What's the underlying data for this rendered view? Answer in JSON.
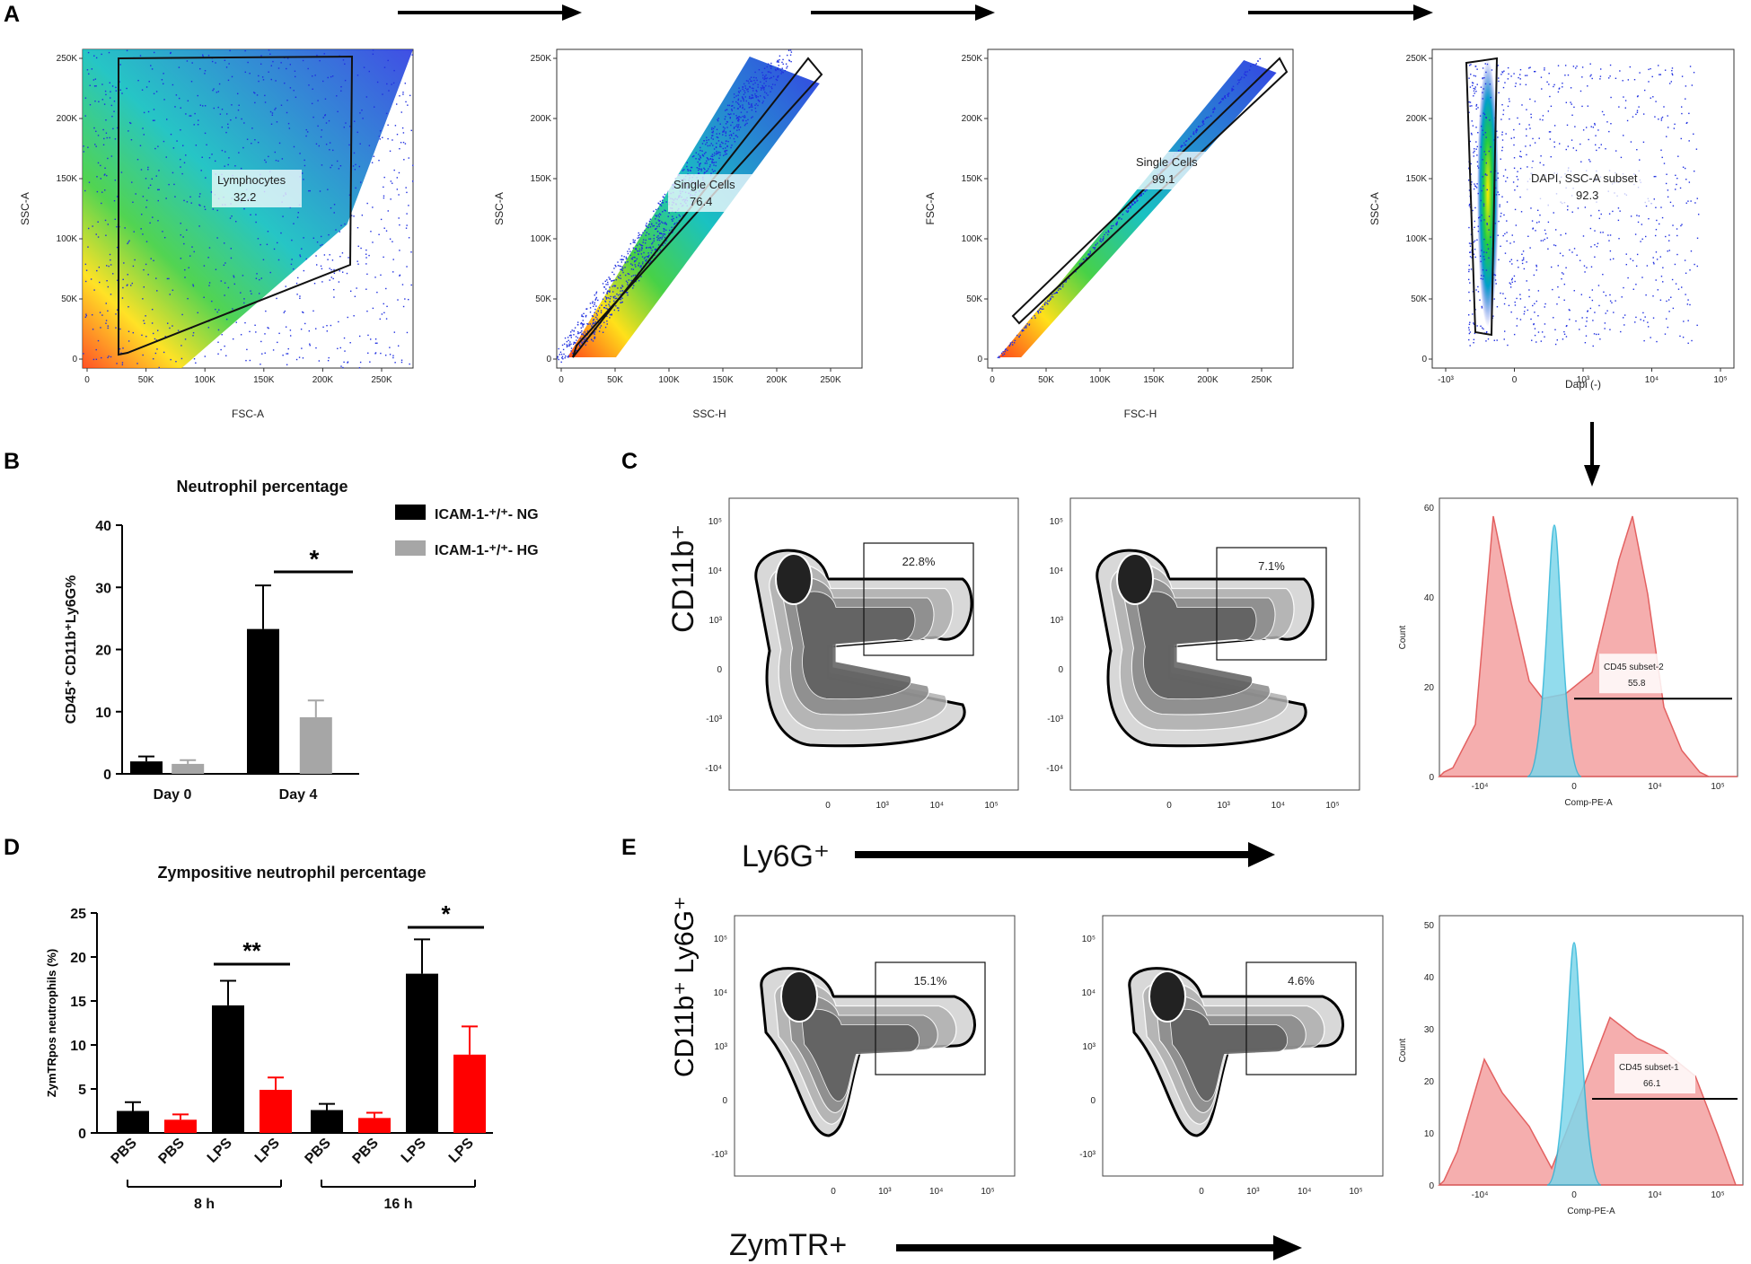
{
  "panels": {
    "A": {
      "letter": "A",
      "plots": [
        {
          "ylabel": "SSC-A",
          "xlabel": "FSC-A",
          "gate_name": "Lymphocytes",
          "gate_value": "32.2",
          "yticks": [
            "250K",
            "200K",
            "150K",
            "100K",
            "50K",
            "0"
          ],
          "xticks": [
            "0",
            "50K",
            "100K",
            "150K",
            "200K",
            "250K"
          ]
        },
        {
          "ylabel": "SSC-A",
          "xlabel": "SSC-H",
          "gate_name": "Single Cells",
          "gate_value": "76.4",
          "yticks": [
            "250K",
            "200K",
            "150K",
            "100K",
            "50K",
            "0"
          ],
          "xticks": [
            "0",
            "50K",
            "100K",
            "150K",
            "200K",
            "250K"
          ]
        },
        {
          "ylabel": "FSC-A",
          "xlabel": "FSC-H",
          "gate_name": "Single Cells",
          "gate_value": "99.1",
          "yticks": [
            "250K",
            "200K",
            "150K",
            "100K",
            "50K",
            "0"
          ],
          "xticks": [
            "0",
            "50K",
            "100K",
            "150K",
            "200K",
            "250K"
          ]
        },
        {
          "ylabel": "SSC-A",
          "xlabel": "Dapi (-)",
          "gate_name": "DAPI, SSC-A subset",
          "gate_value": "92.3",
          "yticks": [
            "250K",
            "200K",
            "150K",
            "100K",
            "50K",
            "0"
          ],
          "xticks": [
            "-10³",
            "0",
            "10³",
            "10⁴",
            "10⁵"
          ]
        }
      ]
    },
    "B": {
      "letter": "B"
    },
    "C": {
      "letter": "C",
      "ylabel": "CD11b⁺",
      "xlabel": "Ly6G⁺",
      "gate1": "22.8%",
      "gate2": "7.1%",
      "hist": {
        "ylabel": "Count",
        "xlabel": "Comp-PE-A",
        "gate_name": "CD45 subset-2",
        "gate_value": "55.8",
        "yticks": [
          "60",
          "40",
          "20",
          "0"
        ],
        "xticks": [
          "-10⁴",
          "0",
          "10⁴",
          "10⁵"
        ]
      }
    },
    "D": {
      "letter": "D"
    },
    "E": {
      "letter": "E",
      "ylabel": "CD11b⁺ Ly6G⁺",
      "xlabel": "ZymTR+",
      "gate1": "15.1%",
      "gate2": "4.6%",
      "hist": {
        "ylabel": "Count",
        "xlabel": "Comp-PE-A",
        "gate_name": "CD45 subset-1",
        "gate_value": "66.1",
        "yticks": [
          "50",
          "40",
          "30",
          "20",
          "10",
          "0"
        ],
        "xticks": [
          "-10⁴",
          "0",
          "10⁴",
          "10⁵"
        ]
      }
    },
    "contour_ticks": {
      "y": [
        "10⁵",
        "10⁴",
        "10³",
        "0",
        "-10³",
        "-10⁴"
      ],
      "x": [
        "0",
        "10³",
        "10⁴",
        "10⁵"
      ]
    }
  },
  "chart_data": [
    {
      "type": "bar",
      "title": "Neutrophil percentage",
      "ylabel": "CD45⁺ CD11b⁺Ly6G%",
      "xlabel": "",
      "ylim": [
        0,
        40
      ],
      "yticks": [
        "0",
        "10",
        "20",
        "30",
        "40"
      ],
      "categories": [
        "Day 0",
        "Day 4"
      ],
      "series": [
        {
          "name": "ICAM-1-⁺/⁺- NG",
          "color": "#000000",
          "values": [
            2.0,
            23.3
          ],
          "errors": [
            0.8,
            7.0
          ]
        },
        {
          "name": "ICAM-1-⁺/⁺- HG",
          "color": "#a6a6a6",
          "values": [
            1.6,
            9.1
          ],
          "errors": [
            0.6,
            2.7
          ]
        }
      ],
      "significance": [
        {
          "category": "Day 4",
          "label": "*"
        }
      ]
    },
    {
      "type": "bar",
      "title": "Zympositive neutrophil percentage",
      "ylabel": "ZymTRpos neutrophils (%)",
      "xlabel": "",
      "ylim": [
        0,
        25
      ],
      "yticks": [
        "0",
        "5",
        "10",
        "15",
        "20",
        "25"
      ],
      "categories": [
        "PBS",
        "PBS",
        "LPS",
        "LPS",
        "PBS",
        "PBS",
        "LPS",
        "LPS"
      ],
      "values": [
        2.5,
        1.5,
        14.5,
        4.9,
        2.6,
        1.7,
        18.1,
        8.9
      ],
      "errors": [
        1.0,
        0.6,
        2.8,
        1.4,
        0.7,
        0.6,
        3.9,
        3.2
      ],
      "colors": [
        "#000000",
        "#ff0000",
        "#000000",
        "#ff0000",
        "#000000",
        "#ff0000",
        "#000000",
        "#ff0000"
      ],
      "groups": [
        {
          "label": "8 h",
          "from": 0,
          "to": 3
        },
        {
          "label": "16 h",
          "from": 4,
          "to": 7
        }
      ],
      "significance": [
        {
          "from": 2,
          "to": 3,
          "label": "**"
        },
        {
          "from": 6,
          "to": 7,
          "label": "*"
        }
      ]
    }
  ]
}
